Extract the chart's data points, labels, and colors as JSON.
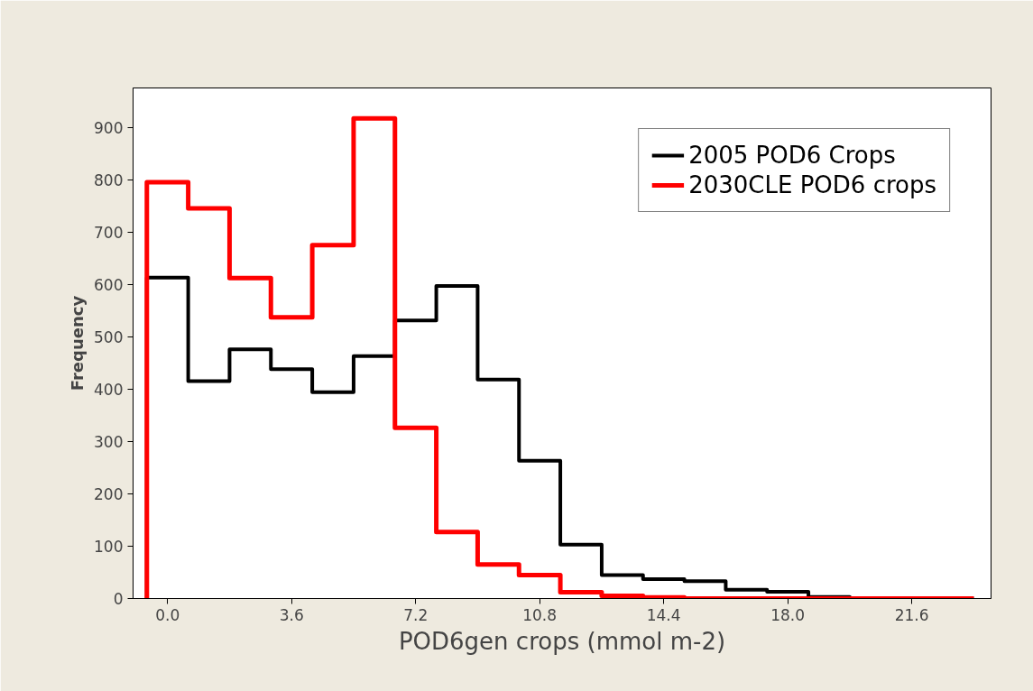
{
  "chart_data": {
    "type": "histogram",
    "xlabel": "POD6gen crops (mmol m-2)",
    "ylabel": "Frequency",
    "bins": [
      -0.6,
      0.6,
      1.8,
      3.0,
      4.2,
      5.4,
      6.6,
      7.8,
      9.0,
      10.2,
      11.4,
      12.6,
      13.8,
      15.0,
      16.2,
      17.4,
      18.6,
      19.8,
      21.0,
      22.2,
      23.4
    ],
    "series": [
      {
        "name": "2005 POD6 Crops",
        "color": "#000000",
        "values": [
          613,
          415,
          476,
          438,
          394,
          463,
          531,
          597,
          418,
          263,
          103,
          45,
          37,
          33,
          17,
          13,
          3,
          0,
          0,
          0
        ]
      },
      {
        "name": "2030CLE POD6 crops",
        "color": "#ff0000",
        "values": [
          795,
          745,
          612,
          537,
          675,
          917,
          326,
          127,
          65,
          45,
          12,
          5,
          2,
          0,
          0,
          0,
          0,
          0,
          0,
          0
        ]
      }
    ],
    "xlim": [
      -1.0,
      23.9
    ],
    "xticks": [
      {
        "value": 0,
        "label": "0.0"
      },
      3.6,
      7.2,
      10.8,
      14.4,
      {
        "value": 18,
        "label": "18.0"
      },
      21.6
    ],
    "ylim": [
      0,
      975
    ],
    "yticks": [
      0,
      100,
      200,
      300,
      400,
      500,
      600,
      700,
      800,
      900
    ],
    "grid": false,
    "legend": "top right"
  }
}
